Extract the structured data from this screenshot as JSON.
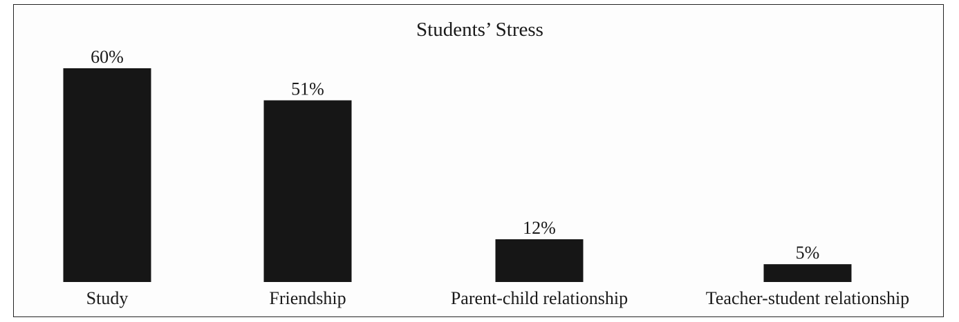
{
  "chart_data": {
    "type": "bar",
    "title": "Students’ Stress",
    "categories": [
      "Study",
      "Friendship",
      "Parent-child relationship",
      "Teacher-student relationship"
    ],
    "values": [
      60,
      51,
      12,
      5
    ],
    "value_labels": [
      "60%",
      "51%",
      "12%",
      "5%"
    ],
    "unit": "%",
    "ylim": [
      0,
      60
    ],
    "grid": false,
    "axes_visible": false,
    "bar_color": "#161616"
  }
}
